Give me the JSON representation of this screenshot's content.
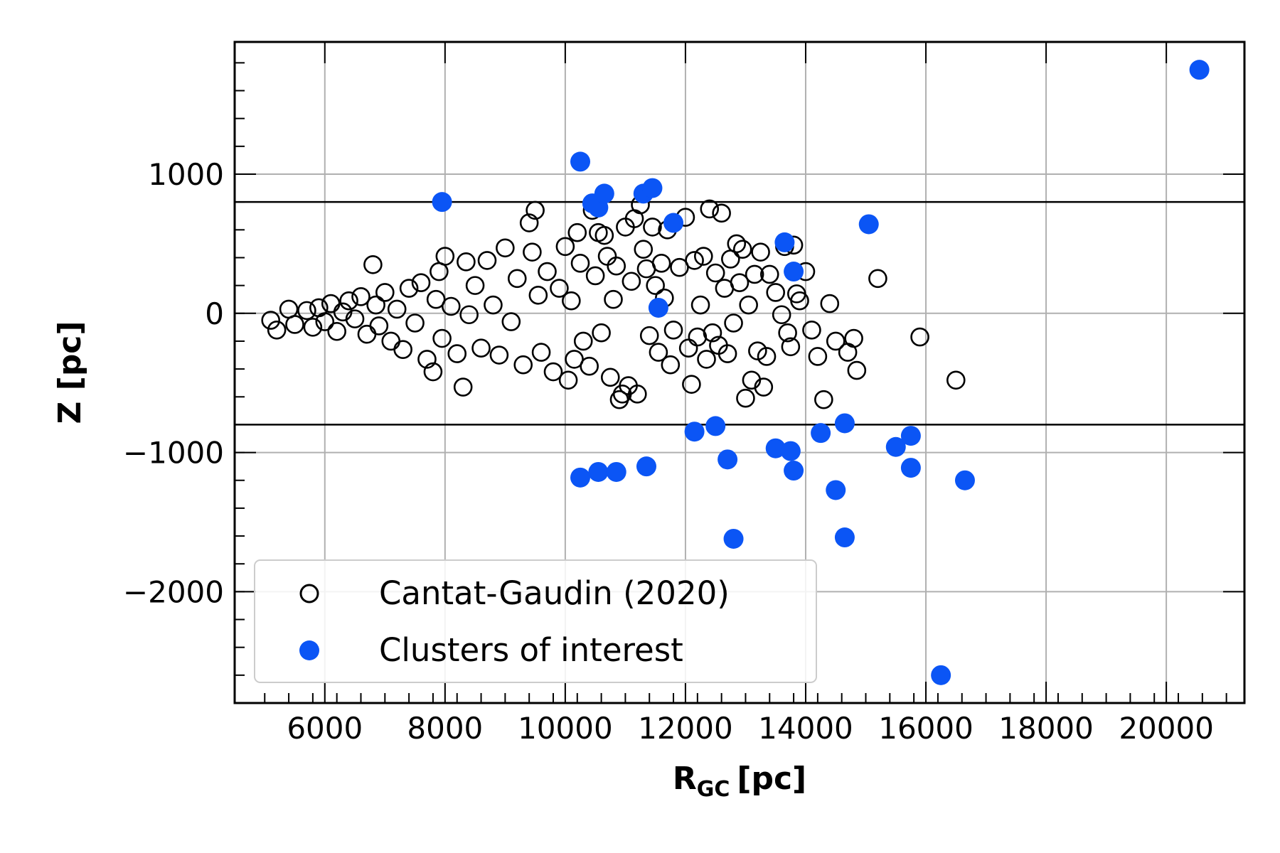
{
  "chart_data": {
    "type": "scatter",
    "xlabel": "R",
    "xlabel_sub": "GC",
    "xlabel_unit": "[pc]",
    "ylabel": "Z [pc]",
    "xlim": [
      4500,
      21300
    ],
    "ylim": [
      -2800,
      1950
    ],
    "xticks": [
      6000,
      8000,
      10000,
      12000,
      14000,
      16000,
      18000,
      20000
    ],
    "xtick_labels": [
      "6000",
      "8000",
      "10000",
      "12000",
      "14000",
      "16000",
      "18000",
      "20000"
    ],
    "yticks": [
      -2000,
      -1000,
      0,
      1000
    ],
    "ytick_labels": [
      "−2000",
      "−1000",
      "0",
      "1000"
    ],
    "grid": true,
    "hlines": [
      800,
      -800
    ],
    "legend_position": "lower-left",
    "series": [
      {
        "name": "Cantat-Gaudin (2020)",
        "marker": "open-circle",
        "color": "#000000",
        "points": [
          [
            5100,
            -50
          ],
          [
            5200,
            -120
          ],
          [
            5400,
            30
          ],
          [
            5500,
            -80
          ],
          [
            5700,
            20
          ],
          [
            5800,
            -100
          ],
          [
            5900,
            40
          ],
          [
            6000,
            -60
          ],
          [
            6100,
            70
          ],
          [
            6200,
            -130
          ],
          [
            6300,
            10
          ],
          [
            6400,
            90
          ],
          [
            6500,
            -40
          ],
          [
            6600,
            120
          ],
          [
            6700,
            -150
          ],
          [
            6800,
            350
          ],
          [
            6850,
            60
          ],
          [
            6900,
            -90
          ],
          [
            7000,
            150
          ],
          [
            7100,
            -200
          ],
          [
            7200,
            30
          ],
          [
            7300,
            -260
          ],
          [
            7400,
            180
          ],
          [
            7500,
            -70
          ],
          [
            7600,
            220
          ],
          [
            7700,
            -330
          ],
          [
            7800,
            -420
          ],
          [
            7850,
            100
          ],
          [
            7900,
            300
          ],
          [
            7950,
            -180
          ],
          [
            8000,
            410
          ],
          [
            8100,
            50
          ],
          [
            8200,
            -290
          ],
          [
            8300,
            -530
          ],
          [
            8350,
            370
          ],
          [
            8400,
            -10
          ],
          [
            8500,
            200
          ],
          [
            8600,
            -250
          ],
          [
            8700,
            380
          ],
          [
            8800,
            60
          ],
          [
            8900,
            -300
          ],
          [
            9000,
            470
          ],
          [
            9100,
            -60
          ],
          [
            9200,
            250
          ],
          [
            9300,
            -370
          ],
          [
            9400,
            650
          ],
          [
            9450,
            440
          ],
          [
            9500,
            740
          ],
          [
            9550,
            130
          ],
          [
            9600,
            -280
          ],
          [
            9700,
            300
          ],
          [
            9800,
            -420
          ],
          [
            9900,
            180
          ],
          [
            10000,
            480
          ],
          [
            10050,
            -480
          ],
          [
            10100,
            90
          ],
          [
            10150,
            -330
          ],
          [
            10200,
            580
          ],
          [
            10250,
            360
          ],
          [
            10300,
            -200
          ],
          [
            10400,
            -380
          ],
          [
            10450,
            740
          ],
          [
            10500,
            270
          ],
          [
            10550,
            580
          ],
          [
            10600,
            -140
          ],
          [
            10650,
            560
          ],
          [
            10700,
            410
          ],
          [
            10750,
            -460
          ],
          [
            10800,
            100
          ],
          [
            10850,
            340
          ],
          [
            10900,
            -620
          ],
          [
            10950,
            -580
          ],
          [
            11000,
            620
          ],
          [
            11050,
            -520
          ],
          [
            11100,
            230
          ],
          [
            11150,
            680
          ],
          [
            11200,
            -580
          ],
          [
            11250,
            780
          ],
          [
            11300,
            460
          ],
          [
            11350,
            320
          ],
          [
            11400,
            -160
          ],
          [
            11450,
            620
          ],
          [
            11500,
            200
          ],
          [
            11550,
            -280
          ],
          [
            11600,
            360
          ],
          [
            11650,
            110
          ],
          [
            11700,
            600
          ],
          [
            11750,
            -370
          ],
          [
            11800,
            -120
          ],
          [
            11900,
            330
          ],
          [
            12000,
            690
          ],
          [
            12050,
            -250
          ],
          [
            12100,
            -510
          ],
          [
            12150,
            380
          ],
          [
            12200,
            -170
          ],
          [
            12250,
            60
          ],
          [
            12300,
            410
          ],
          [
            12350,
            -330
          ],
          [
            12400,
            750
          ],
          [
            12450,
            -140
          ],
          [
            12500,
            290
          ],
          [
            12550,
            -230
          ],
          [
            12600,
            720
          ],
          [
            12650,
            180
          ],
          [
            12700,
            -290
          ],
          [
            12750,
            390
          ],
          [
            12800,
            -70
          ],
          [
            12850,
            500
          ],
          [
            12900,
            220
          ],
          [
            12950,
            460
          ],
          [
            13000,
            -610
          ],
          [
            13050,
            60
          ],
          [
            13100,
            -480
          ],
          [
            13150,
            280
          ],
          [
            13200,
            -270
          ],
          [
            13250,
            440
          ],
          [
            13300,
            -530
          ],
          [
            13350,
            -310
          ],
          [
            13400,
            280
          ],
          [
            13500,
            150
          ],
          [
            13600,
            -10
          ],
          [
            13650,
            480
          ],
          [
            13700,
            -140
          ],
          [
            13750,
            -240
          ],
          [
            13800,
            490
          ],
          [
            13850,
            140
          ],
          [
            13900,
            90
          ],
          [
            14000,
            300
          ],
          [
            14100,
            -120
          ],
          [
            14200,
            -310
          ],
          [
            14300,
            -620
          ],
          [
            14400,
            70
          ],
          [
            14500,
            -200
          ],
          [
            14700,
            -280
          ],
          [
            14800,
            -180
          ],
          [
            14850,
            -410
          ],
          [
            15200,
            250
          ],
          [
            15900,
            -170
          ],
          [
            16500,
            -480
          ]
        ]
      },
      {
        "name": "Clusters of interest",
        "marker": "filled-circle",
        "color": "#0b55f5",
        "points": [
          [
            7950,
            800
          ],
          [
            10250,
            1090
          ],
          [
            10450,
            790
          ],
          [
            10550,
            760
          ],
          [
            10650,
            860
          ],
          [
            11300,
            860
          ],
          [
            11450,
            900
          ],
          [
            11800,
            650
          ],
          [
            11550,
            40
          ],
          [
            13650,
            510
          ],
          [
            13800,
            300
          ],
          [
            15050,
            640
          ],
          [
            12150,
            -850
          ],
          [
            12500,
            -810
          ],
          [
            12700,
            -1050
          ],
          [
            12800,
            -1620
          ],
          [
            13500,
            -970
          ],
          [
            13750,
            -990
          ],
          [
            13800,
            -1130
          ],
          [
            14250,
            -860
          ],
          [
            14500,
            -1270
          ],
          [
            14650,
            -790
          ],
          [
            14650,
            -1610
          ],
          [
            15500,
            -960
          ],
          [
            15750,
            -880
          ],
          [
            15750,
            -1110
          ],
          [
            16650,
            -1200
          ],
          [
            16250,
            -2600
          ],
          [
            10250,
            -1180
          ],
          [
            10550,
            -1140
          ],
          [
            10850,
            -1140
          ],
          [
            11350,
            -1100
          ],
          [
            20550,
            1750
          ]
        ]
      }
    ]
  }
}
